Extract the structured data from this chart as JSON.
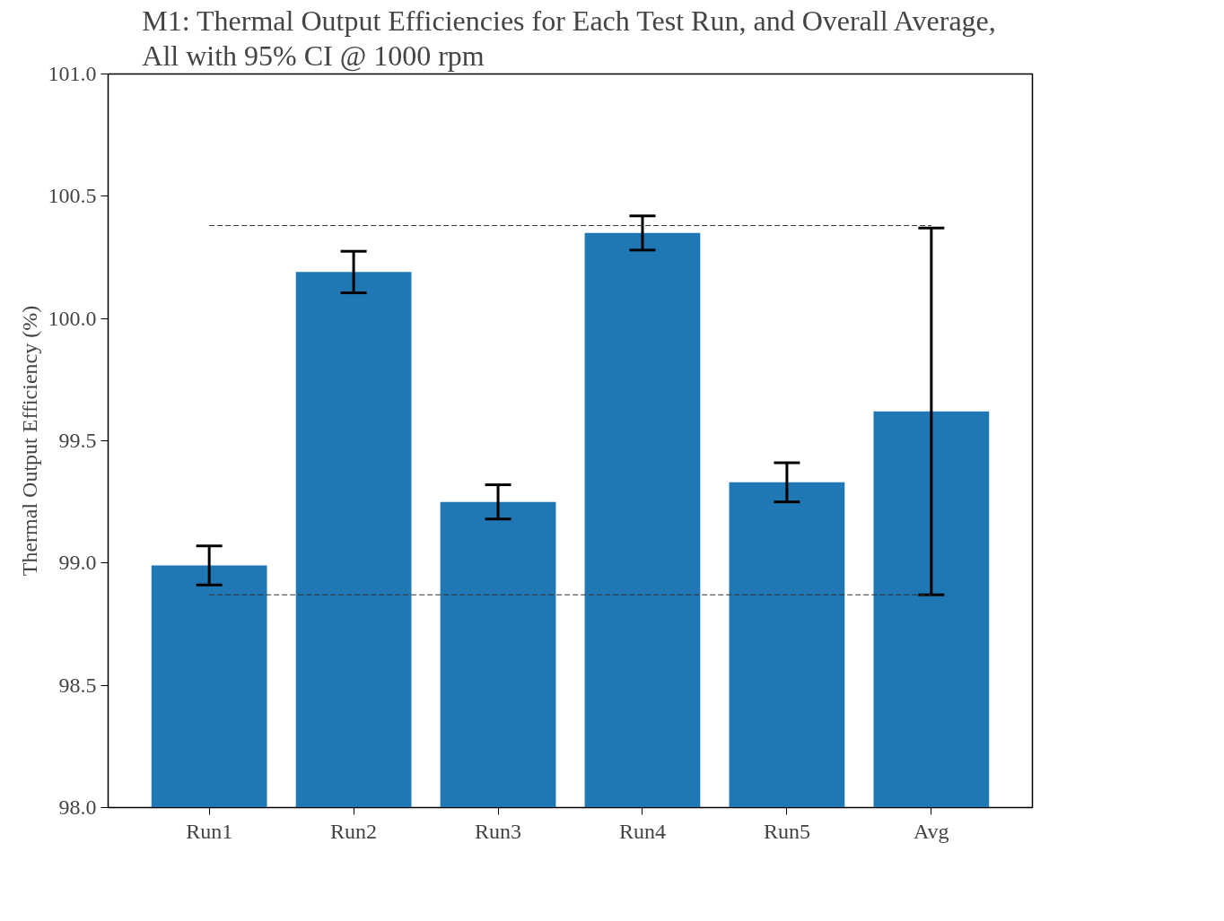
{
  "chart_data": {
    "type": "bar",
    "title": "M1: Thermal Output Efficiencies for Each Test Run, and Overall Average,\nAll with 95% CI @ 1000 rpm",
    "ylabel": "Thermal Output Efficiency (%)",
    "categories": [
      "Run1",
      "Run2",
      "Run3",
      "Run4",
      "Run5",
      "Avg"
    ],
    "values": [
      98.99,
      100.19,
      99.25,
      100.35,
      99.33,
      99.62
    ],
    "errors": [
      0.08,
      0.085,
      0.07,
      0.07,
      0.08,
      0.75
    ],
    "color": "#1f77b4",
    "ylim": [
      98.0,
      101.0
    ],
    "yticks": [
      {
        "value": 98.0,
        "label": "98.0"
      },
      {
        "value": 98.5,
        "label": "98.5"
      },
      {
        "value": 99.0,
        "label": "99.0"
      },
      {
        "value": 99.5,
        "label": "99.5"
      },
      {
        "value": 100.0,
        "label": "100.0"
      },
      {
        "value": 100.5,
        "label": "100.5"
      },
      {
        "value": 101.0,
        "label": "101.0"
      }
    ],
    "ref_lines": [
      {
        "axis": "y",
        "value": 100.38,
        "label": null,
        "line_style": "dashed",
        "color": "#333333"
      },
      {
        "axis": "y",
        "value": 98.87,
        "label": null,
        "line_style": "dashed",
        "color": "#333333"
      }
    ],
    "grid": false
  }
}
